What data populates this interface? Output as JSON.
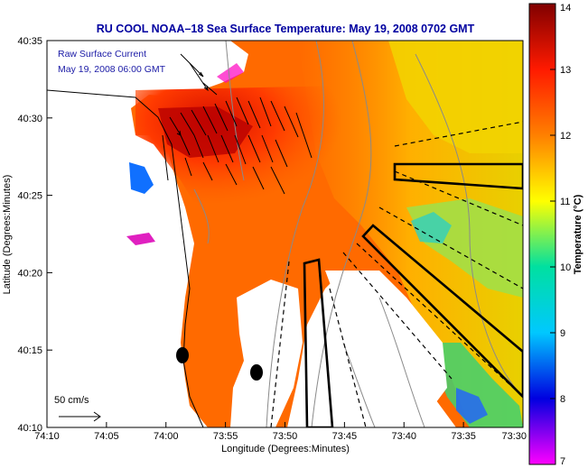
{
  "title": "RU COOL  NOAA–18  Sea Surface Temperature:  May 19, 2008 0702 GMT",
  "overlay": {
    "line1": "Raw Surface Current",
    "line2": "May 19, 2008 06:00 GMT"
  },
  "scale": {
    "label": "50 cm/s"
  },
  "axes": {
    "xlabel": "Longitude (Degrees:Minutes)",
    "ylabel": "Latitude (Degrees:Minutes)",
    "x_ticks": [
      "74:10",
      "74:05",
      "74:00",
      "73:55",
      "73:50",
      "73:45",
      "73:40",
      "73:35",
      "73:30"
    ],
    "y_ticks": [
      "40:35",
      "40:30",
      "40:25",
      "40:20",
      "40:15",
      "40:10"
    ]
  },
  "colorbar": {
    "label": "Temperature (°C)",
    "ticks": [
      "14",
      "13",
      "12",
      "11",
      "10",
      "9",
      "8",
      "7"
    ],
    "min": 7,
    "max": 14,
    "colors": [
      "#ff00ff",
      "#0000e0",
      "#00c8ff",
      "#00e0a0",
      "#ffff00",
      "#ff8000",
      "#ff1a00",
      "#800000"
    ]
  },
  "colors": {
    "water_warm": "#ff4a00",
    "water_mid": "#ff8a00",
    "water_cool": "#ffd000",
    "land": "#ffffff",
    "title": "#0000a0"
  }
}
